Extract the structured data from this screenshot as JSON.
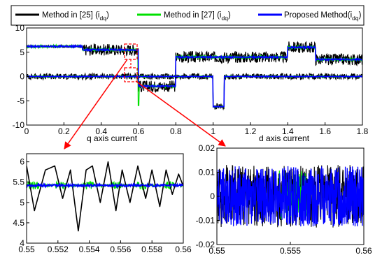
{
  "legend": {
    "entries": [
      {
        "name": "Method in [25] (i",
        "sub": "dq",
        "close": ")",
        "color": "#000000"
      },
      {
        "name": "Method in [27] (i",
        "sub": "dq",
        "close": ")",
        "color": "#00e000"
      },
      {
        "name": "Proposed Method(i",
        "sub": "dq",
        "close": ")",
        "color": "#0000ff"
      }
    ]
  },
  "colors": {
    "series1": "#000000",
    "series2": "#00e000",
    "series3": "#0000ff",
    "zoom_box": "#ff0000",
    "arrow": "#ff0000"
  },
  "chart_data": [
    {
      "type": "line",
      "xlim": [
        0,
        1.8
      ],
      "ylim": [
        -10,
        10
      ],
      "xticks": [
        "0",
        "0.2",
        "0.4",
        "0.6",
        "0.8",
        "1",
        "1.2",
        "1.4",
        "1.6",
        "1.8"
      ],
      "yticks": [
        "-10",
        "-5",
        "0",
        "5",
        "10"
      ],
      "iq_reference": {
        "x": [
          0,
          0.3,
          0.3,
          0.6,
          0.6,
          0.8,
          0.8,
          1.4,
          1.4,
          1.55,
          1.55,
          1.8
        ],
        "y": [
          6.2,
          6.2,
          5.5,
          5.5,
          -2.0,
          -2.0,
          4.0,
          4.0,
          6.0,
          6.0,
          3.5,
          3.5
        ]
      },
      "id_reference": {
        "x": [
          0,
          1.0,
          1.0,
          1.06,
          1.06,
          1.8
        ],
        "y": [
          0,
          0,
          -6.2,
          -6.2,
          0,
          0
        ]
      },
      "ripple_amplitude": {
        "Method in [25]": 1.2,
        "Method in [27]": 0.3,
        "Proposed Method": 0.15
      }
    },
    {
      "type": "line",
      "xlabel": "q axis current",
      "xlim": [
        0.55,
        0.56
      ],
      "ylim": [
        4,
        6.2
      ],
      "xticks": [
        "0.55",
        "0.552",
        "0.554",
        "0.556",
        "0.558",
        "0.56"
      ],
      "yticks": [
        "4",
        "4.5",
        "5",
        "5.5",
        "6"
      ],
      "series": [
        {
          "name": "Method in [25]",
          "x": [
            0.55,
            0.5505,
            0.5512,
            0.5518,
            0.5523,
            0.5528,
            0.5533,
            0.5538,
            0.5542,
            0.5547,
            0.5552,
            0.5557,
            0.5561,
            0.5566,
            0.5571,
            0.5576,
            0.558,
            0.5585,
            0.5589,
            0.5593,
            0.5597,
            0.56
          ],
          "y": [
            5.9,
            4.8,
            5.8,
            5.9,
            5.1,
            5.8,
            4.3,
            5.8,
            5.9,
            5.0,
            6.0,
            4.8,
            5.8,
            5.0,
            5.9,
            5.1,
            5.8,
            4.9,
            5.8,
            5.2,
            5.7,
            5.4
          ]
        },
        {
          "name": "Method in [27]",
          "x": [
            0.55,
            0.56
          ],
          "y": [
            5.42,
            5.42
          ],
          "ripple": 0.1
        },
        {
          "name": "Proposed Method",
          "x": [
            0.55,
            0.56
          ],
          "y": [
            5.42,
            5.42
          ],
          "ripple": 0.03
        }
      ]
    },
    {
      "type": "line",
      "xlabel": "d axis current",
      "xlim": [
        0.55,
        0.56
      ],
      "ylim": [
        -0.02,
        0.02
      ],
      "xticks": [
        "0.55",
        "0.555",
        "0.56"
      ],
      "yticks": [
        "-0.02",
        "-0.01",
        "0",
        "0.01",
        "0.02"
      ],
      "series": [
        {
          "name": "Method in [25]",
          "center": 0,
          "band": 0.013
        },
        {
          "name": "Method in [27]",
          "center": 0,
          "band": 0.012
        },
        {
          "name": "Proposed Method",
          "center": 0,
          "band": 0.0125
        }
      ]
    }
  ]
}
